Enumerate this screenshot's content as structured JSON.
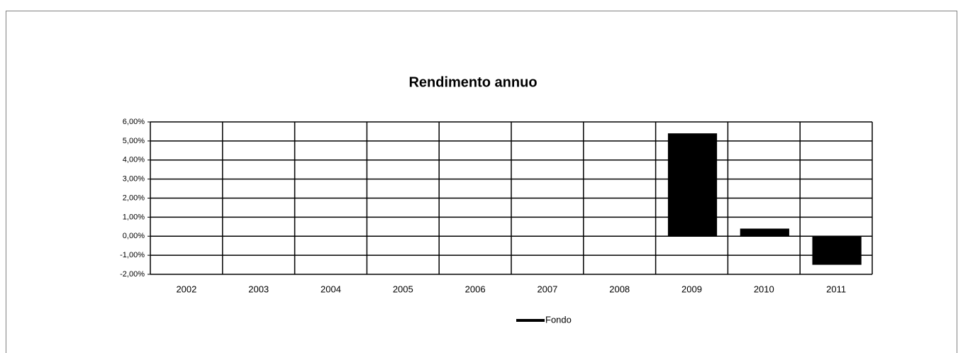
{
  "chart_data": {
    "type": "bar",
    "title": "Rendimento annuo",
    "categories": [
      "2002",
      "2003",
      "2004",
      "2005",
      "2006",
      "2007",
      "2008",
      "2009",
      "2010",
      "2011"
    ],
    "series": [
      {
        "name": "Fondo",
        "color": "#000000",
        "values": [
          null,
          null,
          null,
          null,
          null,
          null,
          null,
          5.4,
          0.4,
          -1.5
        ]
      }
    ],
    "ylim": [
      -2,
      6
    ],
    "yticks": [
      {
        "value": -2,
        "label": "-2,00%"
      },
      {
        "value": -1,
        "label": "-1,00%"
      },
      {
        "value": 0,
        "label": "0,00%"
      },
      {
        "value": 1,
        "label": "1,00%"
      },
      {
        "value": 2,
        "label": "2,00%"
      },
      {
        "value": 3,
        "label": "3,00%"
      },
      {
        "value": 4,
        "label": "4,00%"
      },
      {
        "value": 5,
        "label": "5,00%"
      },
      {
        "value": 6,
        "label": "6,00%"
      }
    ],
    "grid": true
  }
}
